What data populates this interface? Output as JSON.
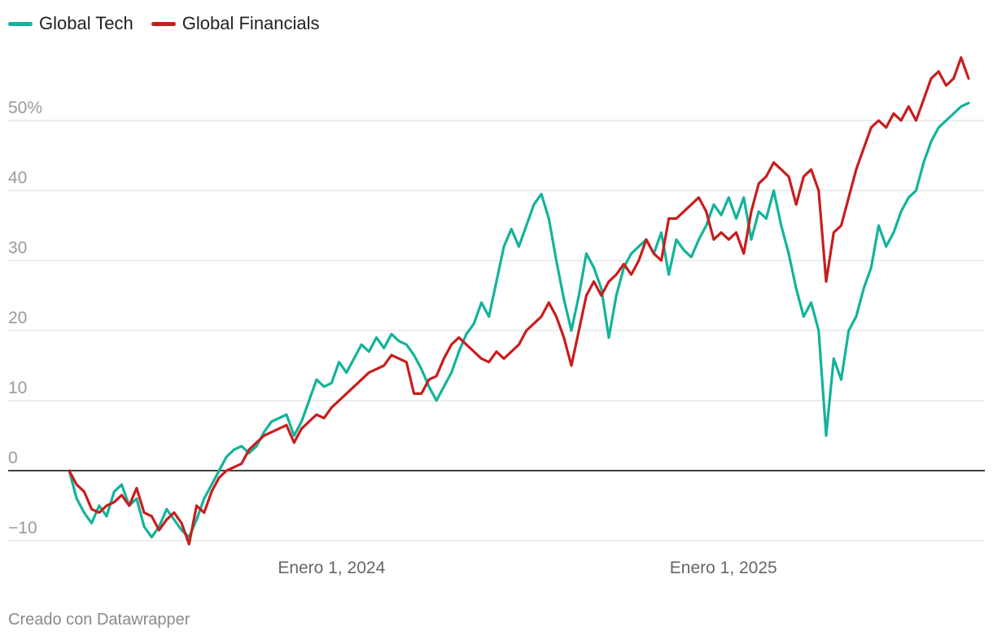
{
  "chart_data": {
    "type": "line",
    "title": "",
    "xlabel": "",
    "ylabel": "",
    "ylim": [
      -10,
      57
    ],
    "xlim": [
      "2023-05-01",
      "2025-09-01"
    ],
    "y_ticks": [
      {
        "value": 50,
        "label": "50%"
      },
      {
        "value": 40,
        "label": "40"
      },
      {
        "value": 30,
        "label": "30"
      },
      {
        "value": 20,
        "label": "20"
      },
      {
        "value": 10,
        "label": "10"
      },
      {
        "value": 0,
        "label": "0"
      },
      {
        "value": -10,
        "label": "−10"
      }
    ],
    "x_ticks": [
      {
        "date": "2024-01-01",
        "label": "Enero 1, 2024"
      },
      {
        "date": "2025-01-01",
        "label": "Enero 1, 2025"
      }
    ],
    "series": [
      {
        "name": "Global Tech",
        "color": "#13b39b",
        "points": [
          [
            "2023-05-01",
            0
          ],
          [
            "2023-05-08",
            -4
          ],
          [
            "2023-05-15",
            -6
          ],
          [
            "2023-05-22",
            -7.5
          ],
          [
            "2023-05-29",
            -5
          ],
          [
            "2023-06-05",
            -6.5
          ],
          [
            "2023-06-12",
            -3
          ],
          [
            "2023-06-19",
            -2
          ],
          [
            "2023-06-26",
            -5
          ],
          [
            "2023-07-03",
            -4
          ],
          [
            "2023-07-10",
            -8
          ],
          [
            "2023-07-17",
            -9.5
          ],
          [
            "2023-07-24",
            -8
          ],
          [
            "2023-07-31",
            -5.5
          ],
          [
            "2023-08-07",
            -7
          ],
          [
            "2023-08-14",
            -8.5
          ],
          [
            "2023-08-21",
            -9.5
          ],
          [
            "2023-08-28",
            -7
          ],
          [
            "2023-09-04",
            -4
          ],
          [
            "2023-09-11",
            -2
          ],
          [
            "2023-09-18",
            0
          ],
          [
            "2023-09-25",
            2
          ],
          [
            "2023-10-02",
            3
          ],
          [
            "2023-10-09",
            3.5
          ],
          [
            "2023-10-16",
            2.5
          ],
          [
            "2023-10-23",
            3.5
          ],
          [
            "2023-10-30",
            5.5
          ],
          [
            "2023-11-06",
            7
          ],
          [
            "2023-11-13",
            7.5
          ],
          [
            "2023-11-20",
            8
          ],
          [
            "2023-11-27",
            5
          ],
          [
            "2023-12-04",
            7
          ],
          [
            "2023-12-11",
            10
          ],
          [
            "2023-12-18",
            13
          ],
          [
            "2023-12-25",
            12
          ],
          [
            "2024-01-01",
            12.5
          ],
          [
            "2024-01-08",
            15.5
          ],
          [
            "2024-01-15",
            14
          ],
          [
            "2024-01-22",
            16
          ],
          [
            "2024-01-29",
            18
          ],
          [
            "2024-02-05",
            17
          ],
          [
            "2024-02-12",
            19
          ],
          [
            "2024-02-19",
            17.5
          ],
          [
            "2024-02-26",
            19.5
          ],
          [
            "2024-03-04",
            18.5
          ],
          [
            "2024-03-11",
            18
          ],
          [
            "2024-03-18",
            16.5
          ],
          [
            "2024-03-25",
            14.5
          ],
          [
            "2024-04-01",
            12
          ],
          [
            "2024-04-08",
            10
          ],
          [
            "2024-04-15",
            12
          ],
          [
            "2024-04-22",
            14
          ],
          [
            "2024-04-29",
            17
          ],
          [
            "2024-05-06",
            19.5
          ],
          [
            "2024-05-13",
            21
          ],
          [
            "2024-05-20",
            24
          ],
          [
            "2024-05-27",
            22
          ],
          [
            "2024-06-03",
            27
          ],
          [
            "2024-06-10",
            32
          ],
          [
            "2024-06-17",
            34.5
          ],
          [
            "2024-06-24",
            32
          ],
          [
            "2024-07-01",
            35
          ],
          [
            "2024-07-08",
            38
          ],
          [
            "2024-07-15",
            39.5
          ],
          [
            "2024-07-22",
            36
          ],
          [
            "2024-07-29",
            30
          ],
          [
            "2024-08-05",
            24.5
          ],
          [
            "2024-08-12",
            20
          ],
          [
            "2024-08-19",
            25
          ],
          [
            "2024-08-26",
            31
          ],
          [
            "2024-09-02",
            29
          ],
          [
            "2024-09-09",
            26
          ],
          [
            "2024-09-16",
            19
          ],
          [
            "2024-09-23",
            25
          ],
          [
            "2024-09-30",
            29
          ],
          [
            "2024-10-07",
            31
          ],
          [
            "2024-10-14",
            32
          ],
          [
            "2024-10-21",
            33
          ],
          [
            "2024-10-28",
            31
          ],
          [
            "2024-11-04",
            34
          ],
          [
            "2024-11-11",
            28
          ],
          [
            "2024-11-18",
            33
          ],
          [
            "2024-11-25",
            31.5
          ],
          [
            "2024-12-02",
            30.5
          ],
          [
            "2024-12-09",
            33
          ],
          [
            "2024-12-16",
            35
          ],
          [
            "2024-12-23",
            38
          ],
          [
            "2024-12-30",
            36.5
          ],
          [
            "2025-01-06",
            39
          ],
          [
            "2025-01-13",
            36
          ],
          [
            "2025-01-20",
            39
          ],
          [
            "2025-01-27",
            33
          ],
          [
            "2025-02-03",
            37
          ],
          [
            "2025-02-10",
            36
          ],
          [
            "2025-02-17",
            40
          ],
          [
            "2025-02-24",
            35
          ],
          [
            "2025-03-03",
            31
          ],
          [
            "2025-03-10",
            26
          ],
          [
            "2025-03-17",
            22
          ],
          [
            "2025-03-24",
            24
          ],
          [
            "2025-03-31",
            20
          ],
          [
            "2025-04-07",
            5
          ],
          [
            "2025-04-14",
            16
          ],
          [
            "2025-04-21",
            13
          ],
          [
            "2025-04-28",
            20
          ],
          [
            "2025-05-05",
            22
          ],
          [
            "2025-05-12",
            26
          ],
          [
            "2025-05-19",
            29
          ],
          [
            "2025-05-26",
            35
          ],
          [
            "2025-06-02",
            32
          ],
          [
            "2025-06-09",
            34
          ],
          [
            "2025-06-16",
            37
          ],
          [
            "2025-06-23",
            39
          ],
          [
            "2025-06-30",
            40
          ],
          [
            "2025-07-07",
            44
          ],
          [
            "2025-07-14",
            47
          ],
          [
            "2025-07-21",
            49
          ],
          [
            "2025-07-28",
            50
          ],
          [
            "2025-08-04",
            51
          ],
          [
            "2025-08-11",
            52
          ],
          [
            "2025-08-18",
            52.5
          ]
        ]
      },
      {
        "name": "Global Financials",
        "color": "#c71e1d",
        "points": [
          [
            "2023-05-01",
            0
          ],
          [
            "2023-05-08",
            -2
          ],
          [
            "2023-05-15",
            -3
          ],
          [
            "2023-05-22",
            -5.5
          ],
          [
            "2023-05-29",
            -6
          ],
          [
            "2023-06-05",
            -5
          ],
          [
            "2023-06-12",
            -4.5
          ],
          [
            "2023-06-19",
            -3.5
          ],
          [
            "2023-06-26",
            -5
          ],
          [
            "2023-07-03",
            -2.5
          ],
          [
            "2023-07-10",
            -6
          ],
          [
            "2023-07-17",
            -6.5
          ],
          [
            "2023-07-24",
            -8.5
          ],
          [
            "2023-07-31",
            -7
          ],
          [
            "2023-08-07",
            -6
          ],
          [
            "2023-08-14",
            -7.5
          ],
          [
            "2023-08-21",
            -10.5
          ],
          [
            "2023-08-28",
            -5
          ],
          [
            "2023-09-04",
            -6
          ],
          [
            "2023-09-11",
            -3
          ],
          [
            "2023-09-18",
            -1
          ],
          [
            "2023-09-25",
            0
          ],
          [
            "2023-10-02",
            0.5
          ],
          [
            "2023-10-09",
            1
          ],
          [
            "2023-10-16",
            3
          ],
          [
            "2023-10-23",
            4
          ],
          [
            "2023-10-30",
            5
          ],
          [
            "2023-11-06",
            5.5
          ],
          [
            "2023-11-13",
            6
          ],
          [
            "2023-11-20",
            6.5
          ],
          [
            "2023-11-27",
            4
          ],
          [
            "2023-12-04",
            6
          ],
          [
            "2023-12-11",
            7
          ],
          [
            "2023-12-18",
            8
          ],
          [
            "2023-12-25",
            7.5
          ],
          [
            "2024-01-01",
            9
          ],
          [
            "2024-01-08",
            10
          ],
          [
            "2024-01-15",
            11
          ],
          [
            "2024-01-22",
            12
          ],
          [
            "2024-01-29",
            13
          ],
          [
            "2024-02-05",
            14
          ],
          [
            "2024-02-12",
            14.5
          ],
          [
            "2024-02-19",
            15
          ],
          [
            "2024-02-26",
            16.5
          ],
          [
            "2024-03-04",
            16
          ],
          [
            "2024-03-11",
            15.5
          ],
          [
            "2024-03-18",
            11
          ],
          [
            "2024-03-25",
            11
          ],
          [
            "2024-04-01",
            13
          ],
          [
            "2024-04-08",
            13.5
          ],
          [
            "2024-04-15",
            16
          ],
          [
            "2024-04-22",
            18
          ],
          [
            "2024-04-29",
            19
          ],
          [
            "2024-05-06",
            18
          ],
          [
            "2024-05-13",
            17
          ],
          [
            "2024-05-20",
            16
          ],
          [
            "2024-05-27",
            15.5
          ],
          [
            "2024-06-03",
            17
          ],
          [
            "2024-06-10",
            16
          ],
          [
            "2024-06-17",
            17
          ],
          [
            "2024-06-24",
            18
          ],
          [
            "2024-07-01",
            20
          ],
          [
            "2024-07-08",
            21
          ],
          [
            "2024-07-15",
            22
          ],
          [
            "2024-07-22",
            24
          ],
          [
            "2024-07-29",
            22
          ],
          [
            "2024-08-05",
            19
          ],
          [
            "2024-08-12",
            15
          ],
          [
            "2024-08-19",
            20
          ],
          [
            "2024-08-26",
            25
          ],
          [
            "2024-09-02",
            27
          ],
          [
            "2024-09-09",
            25
          ],
          [
            "2024-09-16",
            27
          ],
          [
            "2024-09-23",
            28
          ],
          [
            "2024-09-30",
            29.5
          ],
          [
            "2024-10-07",
            28
          ],
          [
            "2024-10-14",
            30
          ],
          [
            "2024-10-21",
            33
          ],
          [
            "2024-10-28",
            31
          ],
          [
            "2024-11-04",
            30
          ],
          [
            "2024-11-11",
            36
          ],
          [
            "2024-11-18",
            36
          ],
          [
            "2024-11-25",
            37
          ],
          [
            "2024-12-02",
            38
          ],
          [
            "2024-12-09",
            39
          ],
          [
            "2024-12-16",
            37
          ],
          [
            "2024-12-23",
            33
          ],
          [
            "2024-12-30",
            34
          ],
          [
            "2025-01-06",
            33
          ],
          [
            "2025-01-13",
            34
          ],
          [
            "2025-01-20",
            31
          ],
          [
            "2025-01-27",
            37
          ],
          [
            "2025-02-03",
            41
          ],
          [
            "2025-02-10",
            42
          ],
          [
            "2025-02-17",
            44
          ],
          [
            "2025-02-24",
            43
          ],
          [
            "2025-03-03",
            42
          ],
          [
            "2025-03-10",
            38
          ],
          [
            "2025-03-17",
            42
          ],
          [
            "2025-03-24",
            43
          ],
          [
            "2025-03-31",
            40
          ],
          [
            "2025-04-07",
            27
          ],
          [
            "2025-04-14",
            34
          ],
          [
            "2025-04-21",
            35
          ],
          [
            "2025-04-28",
            39
          ],
          [
            "2025-05-05",
            43
          ],
          [
            "2025-05-12",
            46
          ],
          [
            "2025-05-19",
            49
          ],
          [
            "2025-05-26",
            50
          ],
          [
            "2025-06-02",
            49
          ],
          [
            "2025-06-09",
            51
          ],
          [
            "2025-06-16",
            50
          ],
          [
            "2025-06-23",
            52
          ],
          [
            "2025-06-30",
            50
          ],
          [
            "2025-07-07",
            53
          ],
          [
            "2025-07-14",
            56
          ],
          [
            "2025-07-21",
            57
          ],
          [
            "2025-07-28",
            55
          ],
          [
            "2025-08-04",
            56
          ],
          [
            "2025-08-11",
            59
          ],
          [
            "2025-08-18",
            56
          ]
        ]
      }
    ]
  },
  "footer": {
    "credit": "Creado con Datawrapper"
  }
}
